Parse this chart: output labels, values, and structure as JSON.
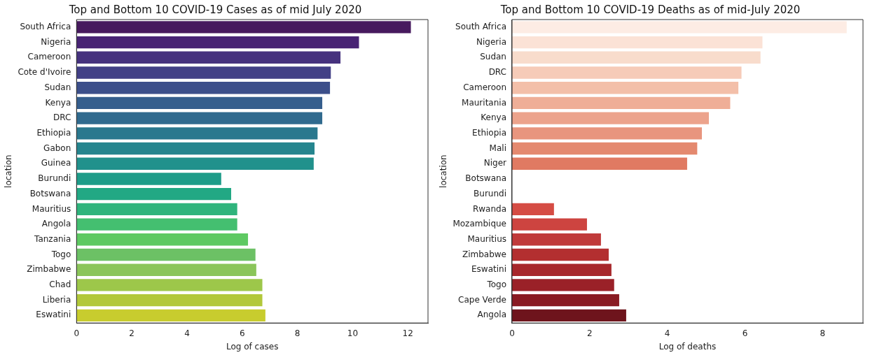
{
  "chart_data": [
    {
      "type": "bar",
      "orientation": "horizontal",
      "title": "Top and Bottom 10 COVID-19 Cases as of mid July 2020",
      "xlabel": "Log of cases",
      "ylabel": "location",
      "categories": [
        "South Africa",
        "Nigeria",
        "Cameroon",
        "Cote d'Ivoire",
        "Sudan",
        "Kenya",
        "DRC",
        "Ethiopia",
        "Gabon",
        "Guinea",
        "Burundi",
        "Botswana",
        "Mauritius",
        "Angola",
        "Tanzania",
        "Togo",
        "Zimbabwe",
        "Chad",
        "Liberia",
        "Eswatini"
      ],
      "values": [
        12.11,
        10.23,
        9.56,
        9.21,
        9.18,
        8.9,
        8.9,
        8.73,
        8.62,
        8.59,
        5.24,
        5.6,
        5.82,
        5.82,
        6.21,
        6.48,
        6.51,
        6.73,
        6.73,
        6.84
      ],
      "colors": [
        "#471a5e",
        "#482374",
        "#46327e",
        "#424086",
        "#3c4f8a",
        "#355e8d",
        "#306a8e",
        "#2a788e",
        "#25858e",
        "#21918c",
        "#1e9c89",
        "#22a884",
        "#2fb47c",
        "#44bf70",
        "#5ec962",
        "#6cc165",
        "#8bc55a",
        "#9dc74a",
        "#b2c83a",
        "#c8cc2e"
      ],
      "xlim": [
        0,
        12.73
      ],
      "xticks": [
        0,
        2,
        4,
        6,
        8,
        10,
        12
      ]
    },
    {
      "type": "bar",
      "orientation": "horizontal",
      "title": "Top and Bottom 10 COVID-19 Deaths as of mid-July 2020",
      "xlabel": "Log of deaths",
      "ylabel": "location",
      "categories": [
        "South Africa",
        "Nigeria",
        "Sudan",
        "DRC",
        "Cameroon",
        "Mauritania",
        "Kenya",
        "Ethiopia",
        "Mali",
        "Niger",
        "Botswana",
        "Burundi",
        "Rwanda",
        "Mozambique",
        "Mauritius",
        "Zimbabwe",
        "Eswatini",
        "Togo",
        "Cape Verde",
        "Angola"
      ],
      "values": [
        8.62,
        6.45,
        6.4,
        5.91,
        5.83,
        5.62,
        5.07,
        4.89,
        4.77,
        4.51,
        0,
        0,
        1.08,
        1.93,
        2.29,
        2.49,
        2.56,
        2.63,
        2.76,
        2.94
      ],
      "colors": [
        "#fdece4",
        "#fbe2d6",
        "#f8dccc",
        "#f6cbb8",
        "#f3bfa9",
        "#efae97",
        "#eca38c",
        "#e8957e",
        "#e4896f",
        "#e07a62",
        "#dc6a55",
        "#d85a4a",
        "#d54c44",
        "#cd4440",
        "#c03a3a",
        "#b32f30",
        "#a7272b",
        "#9a2128",
        "#891b22",
        "#6e141c"
      ],
      "xlim": [
        0,
        9.04
      ],
      "xticks": [
        0,
        2,
        4,
        6,
        8
      ]
    }
  ]
}
